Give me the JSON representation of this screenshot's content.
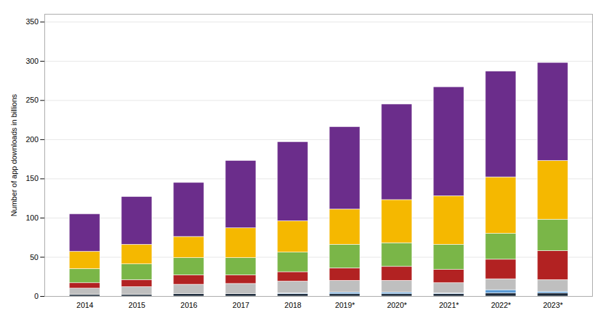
{
  "chart_data": {
    "type": "bar",
    "stacked": true,
    "categories": [
      "2014",
      "2015",
      "2016",
      "2017",
      "2018",
      "2019*",
      "2020*",
      "2021*",
      "2022*",
      "2023*"
    ],
    "series": [
      {
        "color": "#1f2d3d",
        "values": [
          2,
          2,
          3,
          3,
          3,
          3,
          3,
          3,
          4,
          4
        ]
      },
      {
        "color": "#5b9bd5",
        "values": [
          0,
          0,
          0,
          0,
          1,
          2,
          2,
          1,
          4,
          2
        ]
      },
      {
        "color": "#bfbfbf",
        "values": [
          8,
          10,
          12,
          13,
          15,
          15,
          15,
          13,
          14,
          15
        ]
      },
      {
        "color": "#b22222",
        "values": [
          7,
          9,
          12,
          11,
          12,
          16,
          18,
          17,
          25,
          37
        ]
      },
      {
        "color": "#7ab648",
        "values": [
          18,
          20,
          22,
          22,
          25,
          30,
          30,
          32,
          33,
          40
        ]
      },
      {
        "color": "#f5b800",
        "values": [
          22,
          25,
          27,
          38,
          40,
          45,
          55,
          62,
          72,
          75
        ]
      },
      {
        "color": "#6b2d8b",
        "values": [
          48,
          61,
          69,
          86,
          101,
          105,
          122,
          139,
          135,
          125
        ]
      }
    ],
    "ylabel": "Number of app downloads in billions",
    "ylim": [
      0,
      360
    ],
    "yticks": [
      0,
      50,
      100,
      150,
      200,
      250,
      300,
      350
    ],
    "grid": true
  }
}
